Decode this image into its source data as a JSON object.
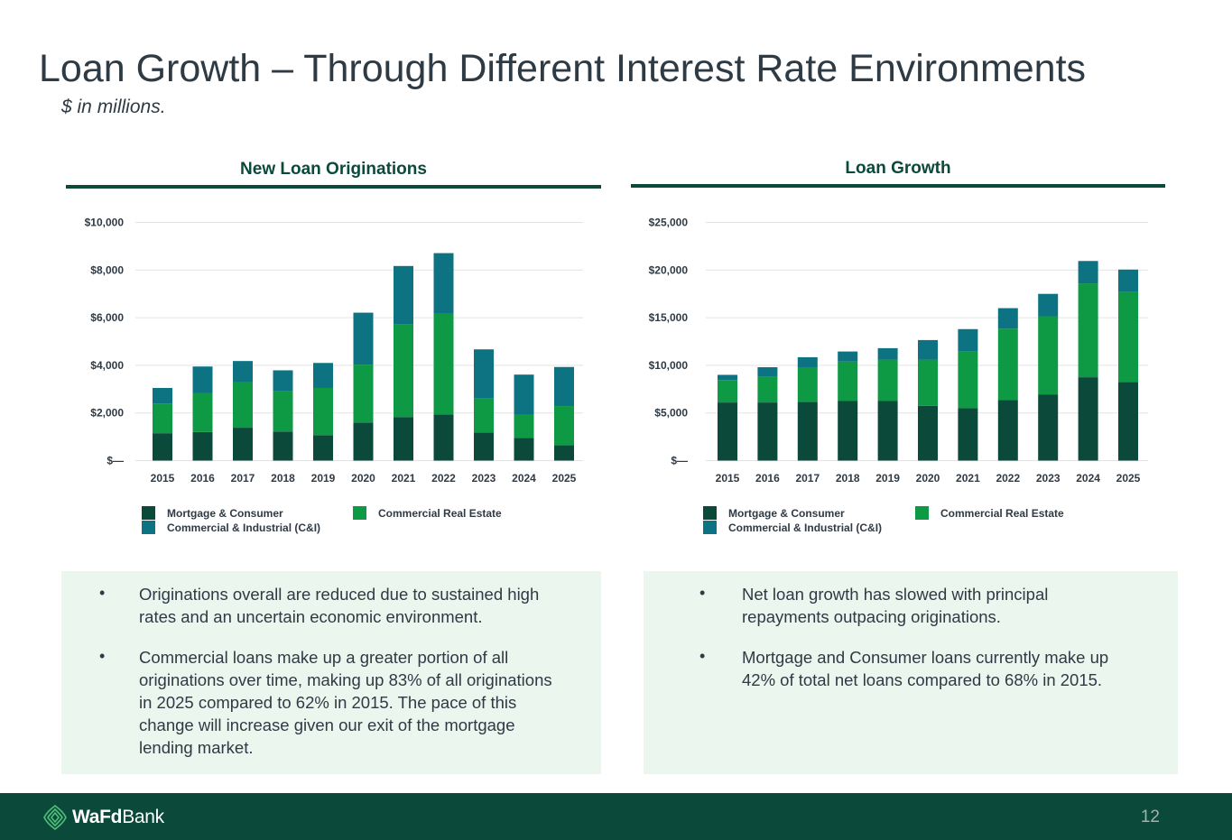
{
  "header": {
    "title": "Loan Growth – Through Different Interest Rate Environments",
    "subtitle": "$ in millions."
  },
  "colors": {
    "mortgage": "#0b4a3a",
    "cre": "#0e9a45",
    "cni": "#0d7382",
    "rule": "#0b4a3a",
    "gridline": "#e3e3e3",
    "notes_bg": "#ebf6ef",
    "footer_bg": "#0b4a3a"
  },
  "chart_data": [
    {
      "type": "bar",
      "stacked": true,
      "title": "New Loan Originations",
      "categories": [
        "2015",
        "2016",
        "2017",
        "2018",
        "2019",
        "2020",
        "2021",
        "2022",
        "2023",
        "2024",
        "2025"
      ],
      "series": [
        {
          "name": "Mortgage & Consumer",
          "values": [
            1150,
            1200,
            1380,
            1220,
            1070,
            1600,
            1830,
            1930,
            1180,
            950,
            650
          ]
        },
        {
          "name": "Commercial Real Estate",
          "values": [
            1250,
            1640,
            1900,
            1690,
            1980,
            2430,
            3880,
            4230,
            1450,
            980,
            1640
          ]
        },
        {
          "name": "Commercial & Industrial (C&I)",
          "values": [
            650,
            1110,
            900,
            880,
            1050,
            2180,
            2460,
            2550,
            2040,
            1680,
            1640
          ]
        }
      ],
      "ylim": [
        0,
        10000
      ],
      "yticks": [
        0,
        2000,
        4000,
        6000,
        8000,
        10000
      ],
      "ytick_labels": [
        "$—",
        "$2,000",
        "$4,000",
        "$6,000",
        "$8,000",
        "$10,000"
      ],
      "grid": true,
      "legend_position": "bottom"
    },
    {
      "type": "bar",
      "stacked": true,
      "title": "Loan Growth",
      "categories": [
        "2015",
        "2016",
        "2017",
        "2018",
        "2019",
        "2020",
        "2021",
        "2022",
        "2023",
        "2024",
        "2025"
      ],
      "series": [
        {
          "name": "Mortgage & Consumer",
          "values": [
            6100,
            6100,
            6150,
            6250,
            6250,
            5750,
            5500,
            6350,
            6950,
            8750,
            8250
          ]
        },
        {
          "name": "Commercial Real Estate",
          "values": [
            2350,
            2750,
            3650,
            4150,
            4350,
            4850,
            6000,
            7500,
            8200,
            9850,
            9500
          ]
        },
        {
          "name": "Commercial & Industrial (C&I)",
          "values": [
            550,
            950,
            1050,
            1050,
            1200,
            2050,
            2300,
            2150,
            2350,
            2350,
            2300
          ]
        }
      ],
      "ylim": [
        0,
        25000
      ],
      "yticks": [
        0,
        5000,
        10000,
        15000,
        20000,
        25000
      ],
      "ytick_labels": [
        "$—",
        "$5,000",
        "$10,000",
        "$15,000",
        "$20,000",
        "$25,000"
      ],
      "grid": true,
      "legend_position": "bottom"
    }
  ],
  "notes": {
    "left": [
      "Originations overall are reduced due to sustained high rates and an uncertain economic environment.",
      "Commercial loans make up a greater portion of all originations over time, making up 83% of all originations in 2025 compared to 62% in 2015. The pace of this change will increase given our exit of the mortgage lending market."
    ],
    "right": [
      "Net loan growth has slowed with principal repayments outpacing originations.",
      "Mortgage and Consumer loans currently make up 42% of total net loans compared to 68% in 2015."
    ],
    "bullet": "•"
  },
  "footer": {
    "brand_bold": "WaFd",
    "brand_regular": "Bank",
    "logo_icon": "wafd-leaf-icon",
    "page_number": "12"
  }
}
